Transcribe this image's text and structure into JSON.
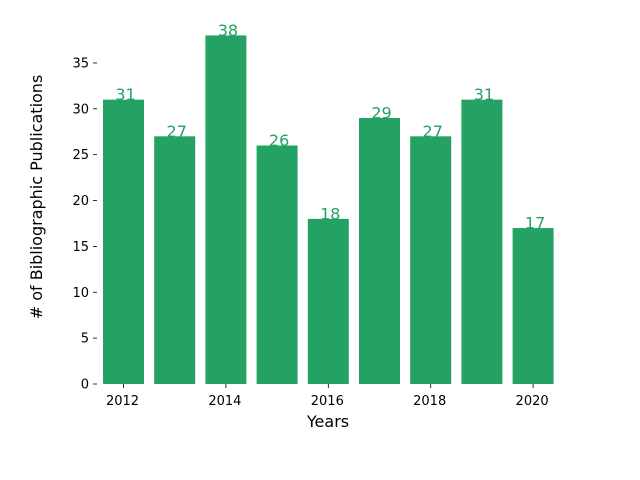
{
  "chart_data": {
    "type": "bar",
    "title": "",
    "xlabel": "Years",
    "ylabel": "# of Bibliographic Publications",
    "categories": [
      2012,
      2013,
      2014,
      2015,
      2016,
      2017,
      2018,
      2019,
      2020
    ],
    "values": [
      31,
      27,
      38,
      26,
      18,
      29,
      27,
      31,
      17
    ],
    "x_tick_labels": [
      "2012",
      "2014",
      "2016",
      "2018",
      "2020"
    ],
    "y_ticks": [
      0,
      5,
      10,
      15,
      20,
      25,
      30,
      35
    ],
    "ylim": [
      0,
      39.9
    ],
    "grid": false,
    "legend": "none",
    "bar_color": "#23a264",
    "label_color": "#23a264",
    "axis_spines_visible": false,
    "value_labels_shown": true
  }
}
